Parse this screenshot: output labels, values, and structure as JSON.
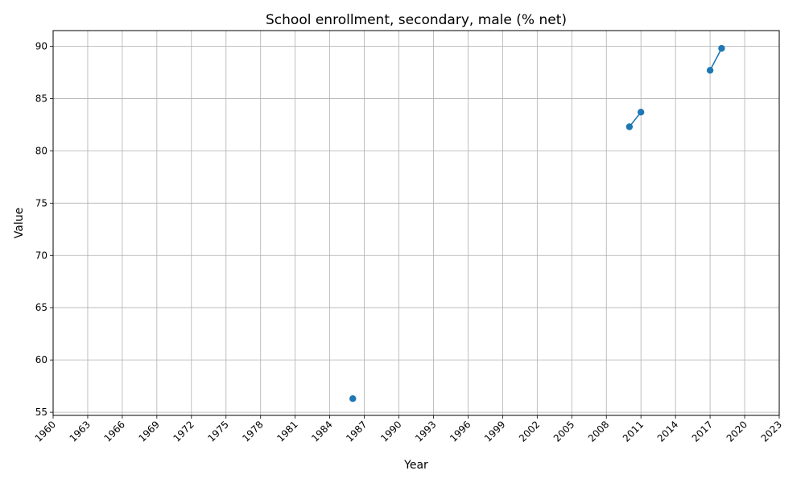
{
  "chart_data": {
    "type": "line",
    "title": "School enrollment, secondary, male (% net)",
    "xlabel": "Year",
    "ylabel": "Value",
    "xlim": [
      1960,
      2023
    ],
    "ylim": [
      54.7,
      91.5
    ],
    "x_ticks": [
      1960,
      1963,
      1966,
      1969,
      1972,
      1975,
      1978,
      1981,
      1984,
      1987,
      1990,
      1993,
      1996,
      1999,
      2002,
      2005,
      2008,
      2011,
      2014,
      2017,
      2020,
      2023
    ],
    "y_ticks": [
      55,
      60,
      65,
      70,
      75,
      80,
      85,
      90
    ],
    "grid": true,
    "series": [
      {
        "color": "#1f77b4",
        "points": [
          {
            "x": 1986,
            "y": 56.3
          },
          {
            "x": 2010,
            "y": 82.3
          },
          {
            "x": 2011,
            "y": 83.7
          },
          {
            "x": 2017,
            "y": 87.7
          },
          {
            "x": 2018,
            "y": 89.8
          }
        ],
        "segments": [
          [
            2010,
            2011
          ],
          [
            2017,
            2018
          ]
        ]
      }
    ]
  }
}
